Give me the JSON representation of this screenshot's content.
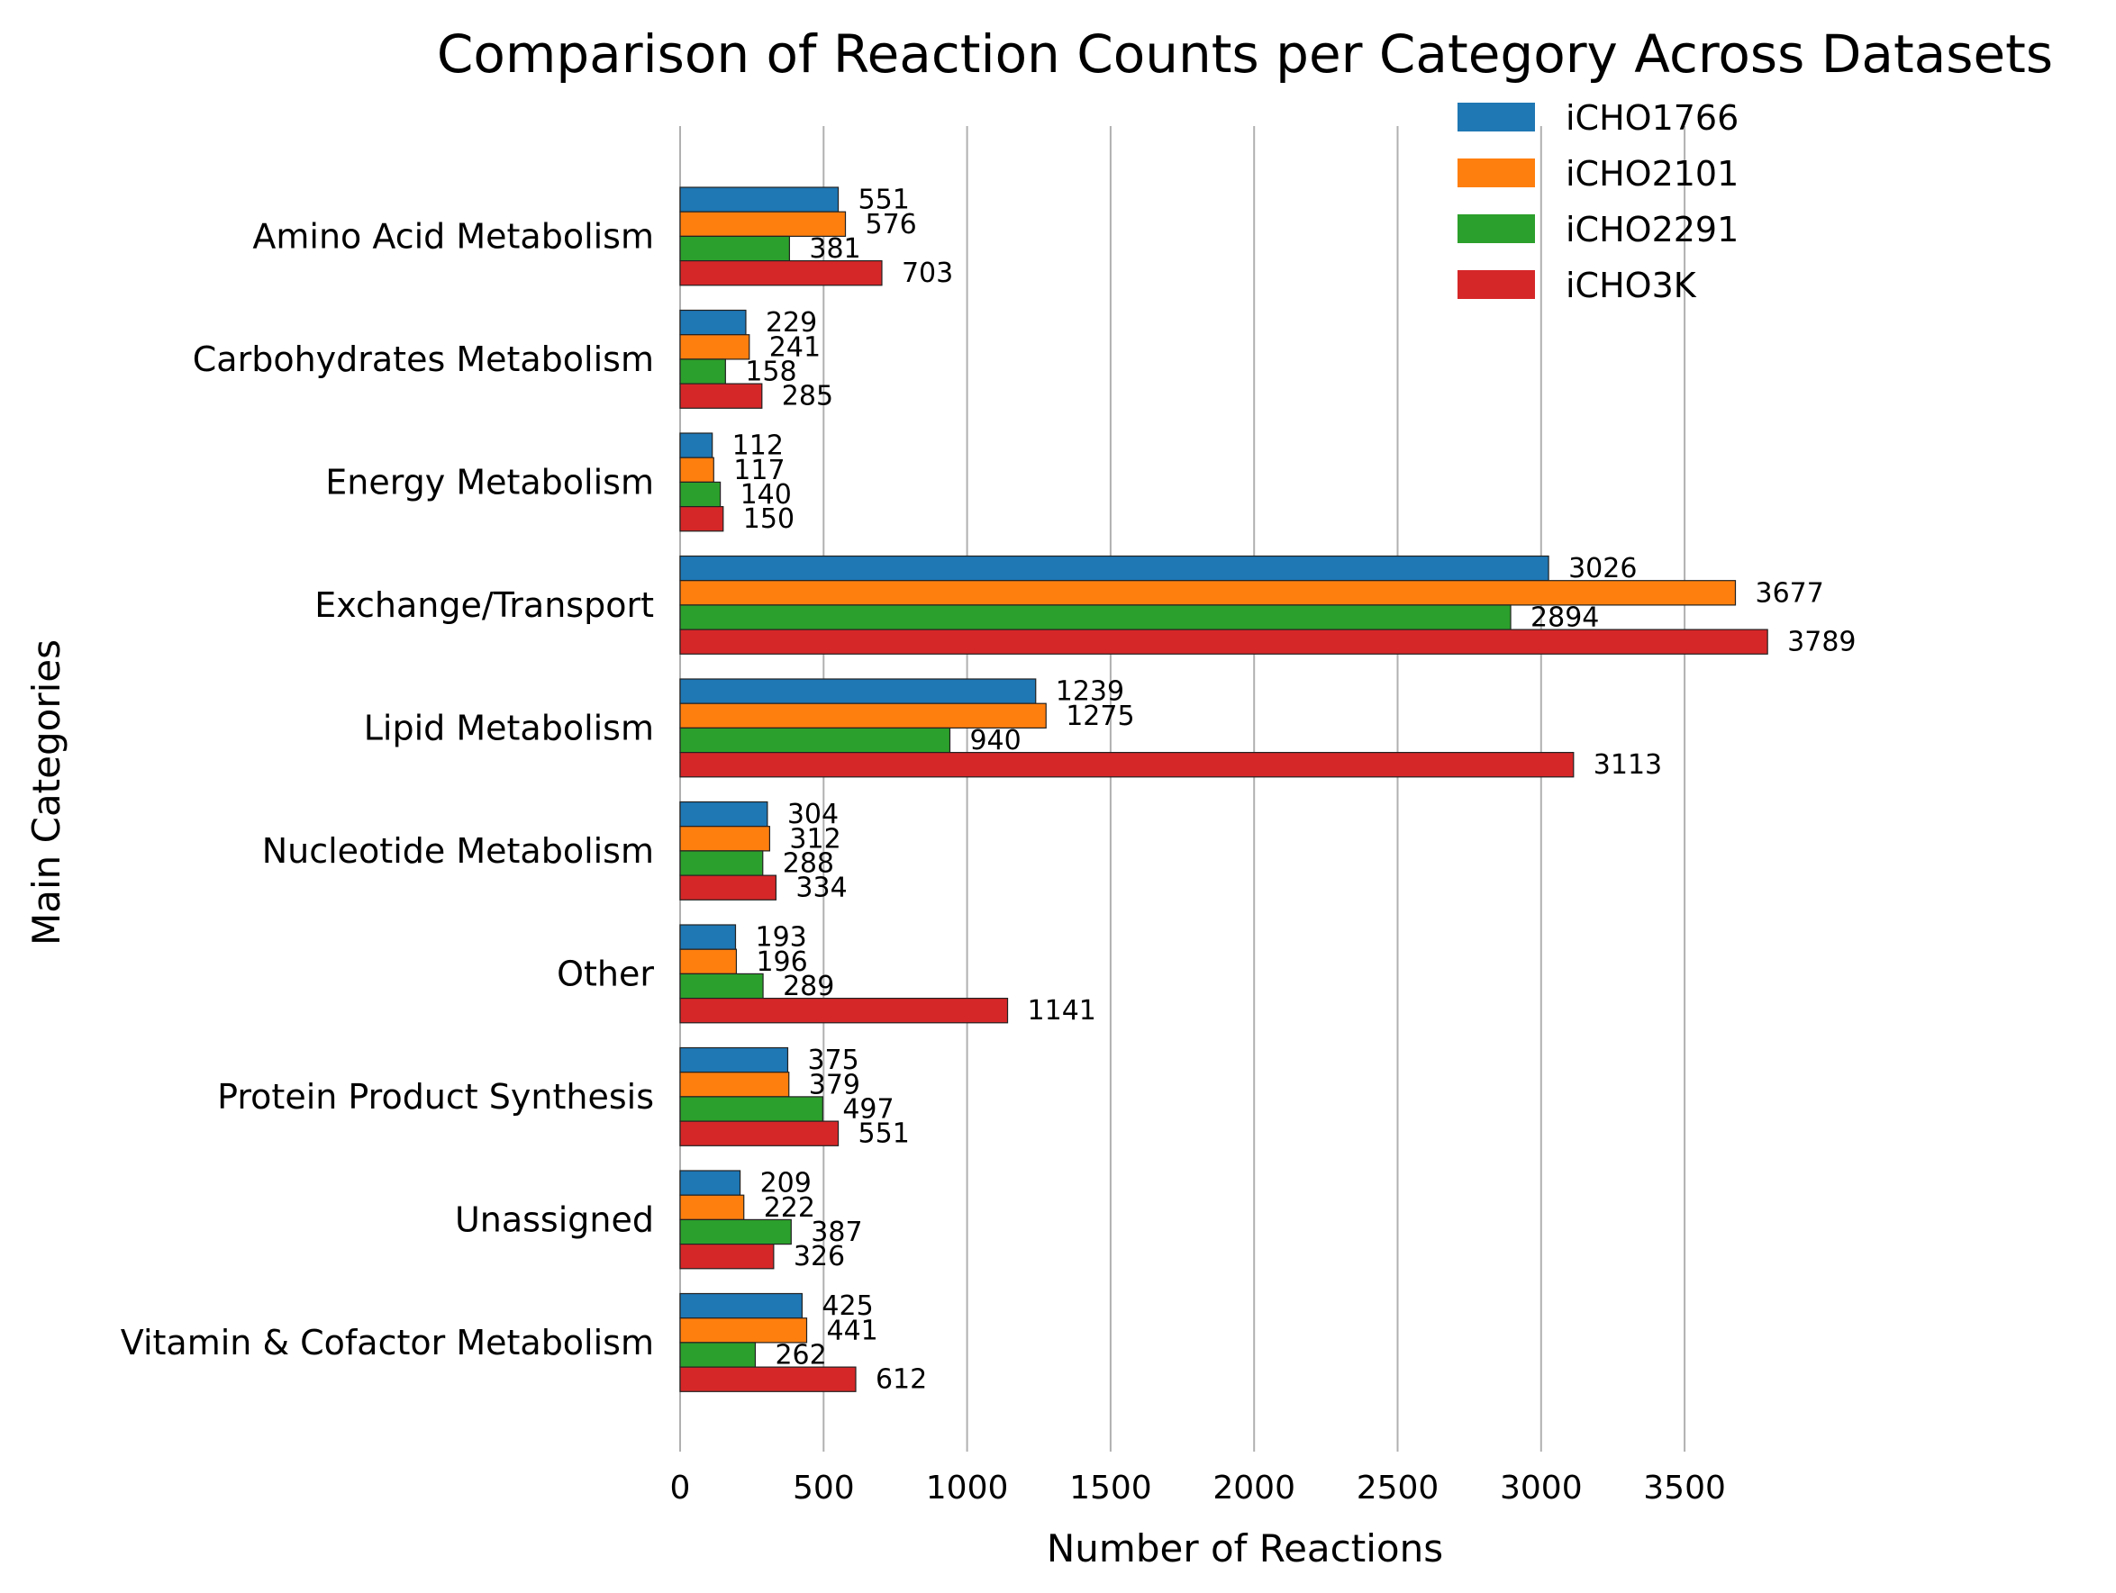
{
  "chart_data": {
    "type": "bar",
    "orientation": "horizontal",
    "title": "Comparison of Reaction Counts per Category Across Datasets",
    "xlabel": "Number of Reactions",
    "ylabel": "Main Categories",
    "xlim": [
      0,
      3789
    ],
    "xticks": [
      0,
      500,
      1000,
      1500,
      2000,
      2500,
      3000,
      3500
    ],
    "grid": "x-axis vertical lines",
    "legend_position": "top-right",
    "categories": [
      "Amino Acid Metabolism",
      "Carbohydrates Metabolism",
      "Energy Metabolism",
      "Exchange/Transport",
      "Lipid Metabolism",
      "Nucleotide Metabolism",
      "Other",
      "Protein Product Synthesis",
      "Unassigned",
      "Vitamin & Cofactor Metabolism"
    ],
    "series": [
      {
        "name": "iCHO1766",
        "color": "#1f77b4",
        "values": [
          551,
          229,
          112,
          3026,
          1239,
          304,
          193,
          375,
          209,
          425
        ]
      },
      {
        "name": "iCHO2101",
        "color": "#ff7f0e",
        "values": [
          576,
          241,
          117,
          3677,
          1275,
          312,
          196,
          379,
          222,
          441
        ]
      },
      {
        "name": "iCHO2291",
        "color": "#2ca02c",
        "values": [
          381,
          158,
          140,
          2894,
          940,
          288,
          289,
          497,
          387,
          262
        ]
      },
      {
        "name": "iCHO3K",
        "color": "#d62728",
        "values": [
          703,
          285,
          150,
          3789,
          3113,
          334,
          1141,
          551,
          326,
          612
        ]
      }
    ]
  }
}
